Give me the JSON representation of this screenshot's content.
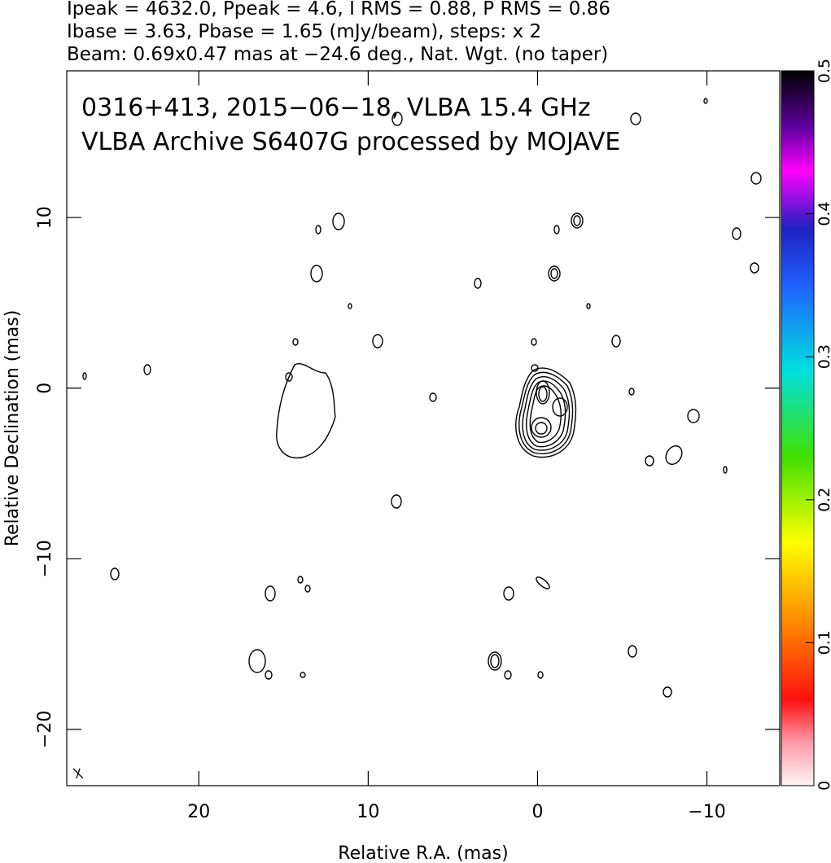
{
  "chart_data": {
    "type": "contour",
    "header": [
      "Ipeak = 4632.0, Ppeak = 4.6, I RMS = 0.88, P RMS = 0.86",
      "Ibase = 3.63, Pbase = 1.65 (mJy/beam), steps: x 2",
      "Beam: 0.69x0.47 mas at −24.6 deg., Nat. Wgt. (no taper)"
    ],
    "annotations": [
      "0316+413, 2015−06−18, VLBA 15.4 GHz",
      "VLBA Archive S6407G processed by MOJAVE"
    ],
    "x_label": "Relative R.A. (mas)",
    "y_label": "Relative Declination (mas)",
    "xlim": [
      27.8,
      -14.3
    ],
    "ylim": [
      -23.3,
      18.6
    ],
    "xticks": [
      20,
      10,
      0,
      {
        "value": -10,
        "label": "−10"
      }
    ],
    "yticks": [
      {
        "value": -20,
        "label": "−20"
      },
      {
        "value": -10,
        "label": "−10"
      },
      0,
      10
    ],
    "colorbar": {
      "lim": [
        0,
        0.5
      ],
      "ticks": [
        0,
        0.1,
        0.2,
        0.3,
        0.4,
        0.5
      ]
    }
  }
}
